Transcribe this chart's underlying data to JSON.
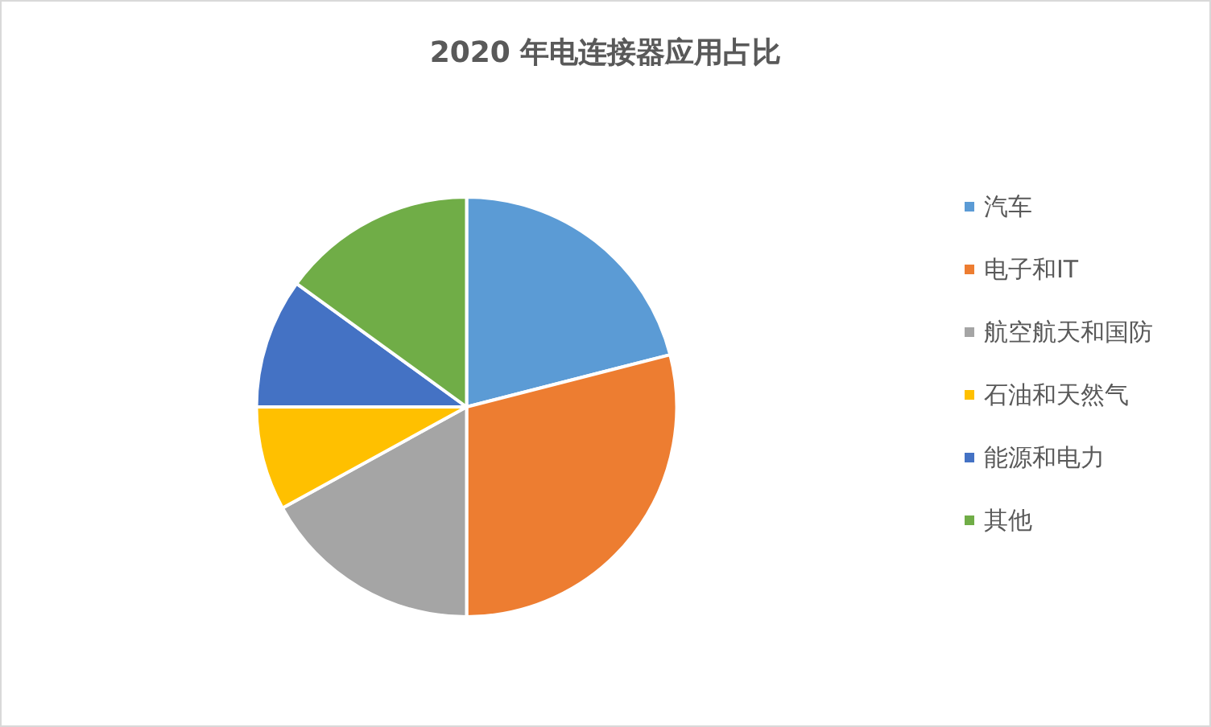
{
  "chart_data": {
    "type": "pie",
    "title": "2020 年电连接器应用占比",
    "categories": [
      "汽车",
      "电子和IT",
      "航空航天和国防",
      "石油和天然气",
      "能源和电力",
      "其他"
    ],
    "values": [
      21,
      29,
      17,
      8,
      10,
      15
    ],
    "colors": [
      "#5b9bd5",
      "#ed7d31",
      "#a5a5a5",
      "#ffc000",
      "#4472c4",
      "#70ad47"
    ],
    "legend": "right"
  }
}
